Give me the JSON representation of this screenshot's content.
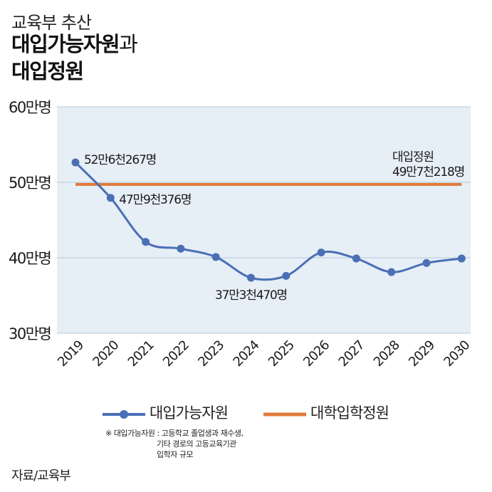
{
  "header": {
    "subtitle": "교육부 추산",
    "title_bold": "대입가능자원",
    "title_connector": "과",
    "title_line2": "대입정원"
  },
  "chart_data": {
    "type": "line",
    "categories": [
      "2019",
      "2020",
      "2021",
      "2022",
      "2023",
      "2024",
      "2025",
      "2026",
      "2027",
      "2028",
      "2029",
      "2030"
    ],
    "series": [
      {
        "name": "대입가능자원",
        "color": "#4a6fb5",
        "values": [
          526267,
          479376,
          421000,
          412000,
          401000,
          373470,
          376000,
          407000,
          399000,
          381000,
          393000,
          399000
        ]
      },
      {
        "name": "대학입학정원",
        "color": "#e07b39",
        "values": [
          497218,
          497218,
          497218,
          497218,
          497218,
          497218,
          497218,
          497218,
          497218,
          497218,
          497218,
          497218
        ]
      }
    ],
    "y_ticks": [
      300000,
      400000,
      500000,
      600000
    ],
    "y_tick_labels": [
      "30만명",
      "40만명",
      "50만명",
      "60만명"
    ],
    "ylim": [
      300000,
      600000
    ],
    "annotations": [
      {
        "label": "52만6천267명",
        "category": "2019",
        "value": 526267
      },
      {
        "label": "47만9천376명",
        "category": "2020",
        "value": 479376
      },
      {
        "label": "37만3천470명",
        "category": "2024",
        "value": 373470
      },
      {
        "label_line1": "대입정원",
        "label_line2": "49만7천218명",
        "category": "2030",
        "value": 497218
      }
    ]
  },
  "legend": {
    "series1": "대입가능자원",
    "series2": "대학입학정원"
  },
  "note": {
    "line1": "※ 대입가능자원 : 고등학교 졸업생과 재수생,",
    "line2": "기타 경로의 고등교육기관",
    "line3": "입학자 규모"
  },
  "source": "자료/교육부"
}
